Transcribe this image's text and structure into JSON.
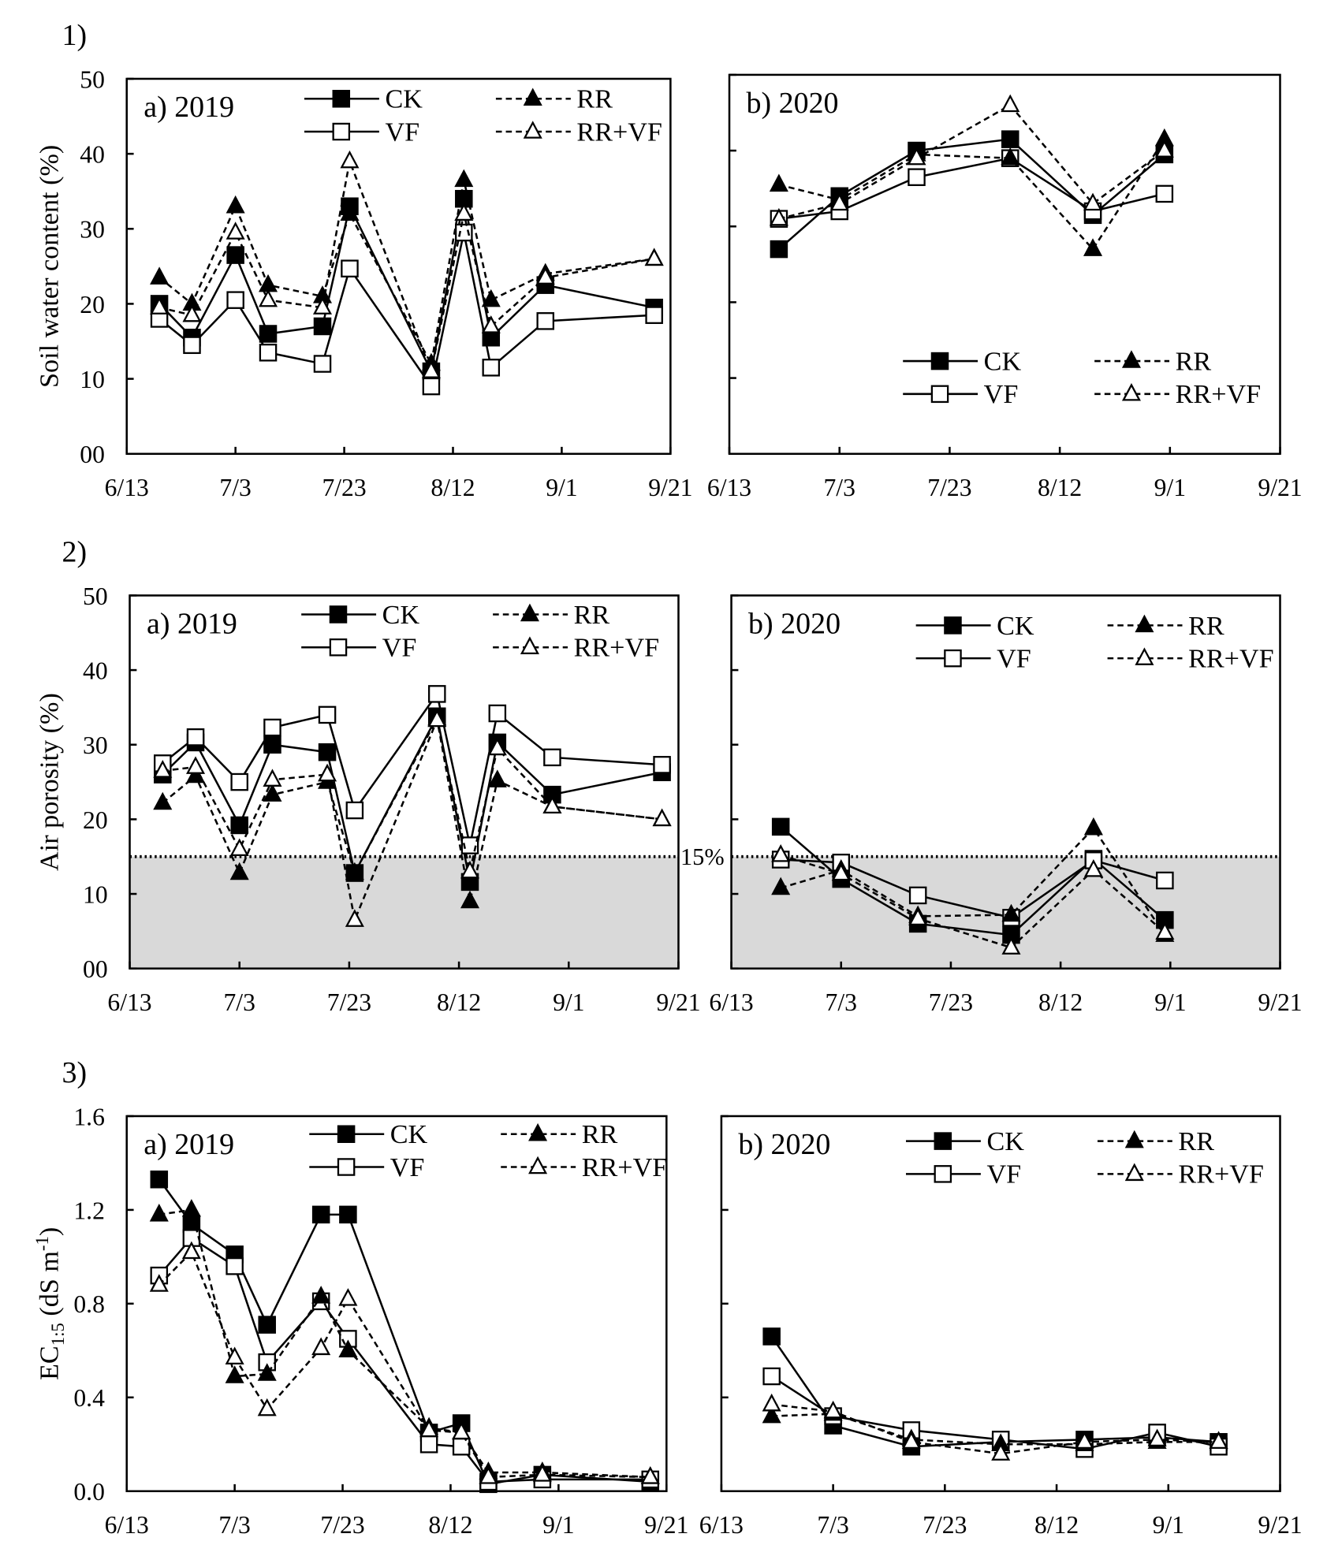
{
  "chart_data": [
    {
      "type": "line",
      "figure_label": "1)",
      "title": "a) 2019",
      "ylabel": "Soil water content (%)",
      "ylim": [
        0,
        50
      ],
      "yticks": [
        "00",
        "10",
        "20",
        "30",
        "40",
        "50"
      ],
      "show_ytick_labels": true,
      "xlim": [
        0,
        100
      ],
      "xticks": [
        "6/13",
        "7/3",
        "7/23",
        "8/12",
        "9/1",
        "9/21"
      ],
      "x_unit": "days after 6/13",
      "legend": "top",
      "x": [
        6,
        12,
        20,
        26,
        36,
        41,
        56,
        62,
        67,
        77,
        97
      ],
      "series": [
        {
          "name": "CK",
          "values": [
            20,
            15.5,
            26.5,
            16,
            17,
            33,
            11,
            34,
            15.5,
            22.5,
            19.5
          ]
        },
        {
          "name": "VF",
          "values": [
            18,
            14.5,
            20.5,
            13.5,
            12,
            24.7,
            9,
            29.5,
            11.5,
            17.7,
            18.5
          ]
        },
        {
          "name": "RR",
          "values": [
            23.5,
            20,
            33,
            22.5,
            21,
            32,
            12,
            36.5,
            20.5,
            24,
            26
          ]
        },
        {
          "name": "RR+VF",
          "values": [
            19.5,
            18.5,
            29.5,
            20.5,
            19.5,
            39,
            11,
            32,
            17,
            23.5,
            26
          ]
        }
      ]
    },
    {
      "type": "line",
      "title": "b) 2020",
      "ylim": [
        0,
        50
      ],
      "yticks": [
        "00",
        "10",
        "20",
        "30",
        "40",
        "50"
      ],
      "show_ytick_labels": false,
      "xlim": [
        0,
        100
      ],
      "xticks": [
        "6/13",
        "7/3",
        "7/23",
        "8/12",
        "9/1",
        "9/21"
      ],
      "legend": "bottom-right",
      "x": [
        9,
        20,
        34,
        51,
        66,
        79
      ],
      "series": [
        {
          "name": "CK",
          "values": [
            27,
            34,
            40,
            41.5,
            31.5,
            39.5
          ]
        },
        {
          "name": "VF",
          "values": [
            31,
            32,
            36.5,
            39,
            32,
            34.3
          ]
        },
        {
          "name": "RR",
          "values": [
            35.5,
            33.5,
            39.5,
            39,
            27,
            41.5
          ]
        },
        {
          "name": "RR+VF",
          "values": [
            31,
            33,
            39,
            46,
            33,
            40
          ]
        }
      ]
    },
    {
      "type": "line",
      "figure_label": "2)",
      "title": "a) 2019",
      "ylabel": "Air porosity (%)",
      "ylim": [
        0,
        50
      ],
      "yticks": [
        "00",
        "10",
        "20",
        "30",
        "40",
        "50"
      ],
      "show_ytick_labels": true,
      "xlim": [
        0,
        100
      ],
      "xticks": [
        "6/13",
        "7/3",
        "7/23",
        "8/12",
        "9/1",
        "9/21"
      ],
      "legend": "top",
      "threshold": 15,
      "threshold_label": "15%",
      "x": [
        6,
        12,
        20,
        26,
        36,
        41,
        56,
        62,
        67,
        77,
        97
      ],
      "series": [
        {
          "name": "CK",
          "values": [
            26,
            30.3,
            19.2,
            30,
            29,
            12.8,
            33.8,
            11.6,
            30.3,
            23.3,
            26.3
          ]
        },
        {
          "name": "VF",
          "values": [
            27.5,
            31,
            25,
            32.3,
            34,
            21.2,
            36.8,
            16.5,
            34.2,
            28.3,
            27.3
          ]
        },
        {
          "name": "RR",
          "values": [
            22.2,
            25.8,
            12.8,
            23.3,
            25,
            12.8,
            33.5,
            9,
            25.2,
            21.7,
            20
          ]
        },
        {
          "name": "RR+VF",
          "values": [
            26.5,
            27,
            16,
            25.3,
            26,
            6.5,
            33.3,
            13,
            29.5,
            21.7,
            20
          ]
        }
      ]
    },
    {
      "type": "line",
      "title": "b) 2020",
      "ylim": [
        0,
        50
      ],
      "yticks": [
        "00",
        "10",
        "20",
        "30",
        "40",
        "50"
      ],
      "show_ytick_labels": false,
      "xlim": [
        0,
        100
      ],
      "xticks": [
        "6/13",
        "7/3",
        "7/23",
        "8/12",
        "9/1",
        "9/21"
      ],
      "legend": "top",
      "threshold": 15,
      "x": [
        9,
        20,
        34,
        51,
        66,
        79
      ],
      "series": [
        {
          "name": "CK",
          "values": [
            19,
            12,
            6,
            4.5,
            14.7,
            6.5
          ]
        },
        {
          "name": "VF",
          "values": [
            14.6,
            14.2,
            9.8,
            6.8,
            14.5,
            11.8
          ]
        },
        {
          "name": "RR",
          "values": [
            10.8,
            13.2,
            7,
            7.2,
            18.8,
            4.5
          ]
        },
        {
          "name": "RR+VF",
          "values": [
            15.2,
            12.7,
            6.7,
            2.8,
            13.2,
            4.8
          ]
        }
      ]
    },
    {
      "type": "line",
      "figure_label": "3)",
      "title": "a) 2019",
      "ylabel_parts": [
        "EC",
        "1:5",
        " (dS m",
        "-1",
        ")"
      ],
      "ylim": [
        0,
        1.6
      ],
      "yticks": [
        "0.0",
        "0.4",
        "0.8",
        "1.2",
        "1.6"
      ],
      "show_ytick_labels": true,
      "xlim": [
        0,
        100
      ],
      "xticks": [
        "6/13",
        "7/3",
        "7/23",
        "8/12",
        "9/1",
        "9/21"
      ],
      "legend": "top",
      "x": [
        6,
        12,
        20,
        26,
        36,
        41,
        56,
        62,
        67,
        77,
        97
      ],
      "series": [
        {
          "name": "CK",
          "values": [
            1.33,
            1.14,
            1.01,
            0.71,
            1.18,
            1.18,
            0.25,
            0.29,
            0.03,
            0.07,
            0.04
          ]
        },
        {
          "name": "VF",
          "values": [
            0.92,
            1.08,
            0.96,
            0.55,
            0.81,
            0.65,
            0.2,
            0.19,
            0.04,
            0.05,
            0.05
          ]
        },
        {
          "name": "RR",
          "values": [
            1.18,
            1.2,
            0.49,
            0.5,
            0.83,
            0.6,
            0.27,
            0.25,
            0.08,
            0.08,
            0.06
          ]
        },
        {
          "name": "RR+VF",
          "values": [
            0.88,
            1.02,
            0.57,
            0.35,
            0.61,
            0.82,
            0.26,
            0.25,
            0.06,
            0.07,
            0.06
          ]
        }
      ]
    },
    {
      "type": "line",
      "title": "b) 2020",
      "ylim": [
        0,
        1.6
      ],
      "yticks": [
        "0.0",
        "0.4",
        "0.8",
        "1.2",
        "1.6"
      ],
      "show_ytick_labels": false,
      "xlim": [
        0,
        100
      ],
      "xticks": [
        "6/13",
        "7/3",
        "7/23",
        "8/12",
        "9/1",
        "9/21"
      ],
      "legend": "top",
      "x": [
        9,
        20,
        34,
        50,
        65,
        78,
        89
      ],
      "series": [
        {
          "name": "CK",
          "values": [
            0.66,
            0.28,
            0.19,
            0.21,
            0.22,
            0.23,
            0.21
          ]
        },
        {
          "name": "VF",
          "values": [
            0.49,
            0.32,
            0.26,
            0.22,
            0.18,
            0.25,
            0.19
          ]
        },
        {
          "name": "RR",
          "values": [
            0.32,
            0.33,
            0.22,
            0.2,
            0.2,
            0.21,
            0.21
          ]
        },
        {
          "name": "RR+VF",
          "values": [
            0.37,
            0.34,
            0.21,
            0.16,
            0.21,
            0.22,
            0.21
          ]
        }
      ]
    }
  ],
  "colors": {
    "line": "#000000",
    "shade": "#d9d9d9"
  }
}
